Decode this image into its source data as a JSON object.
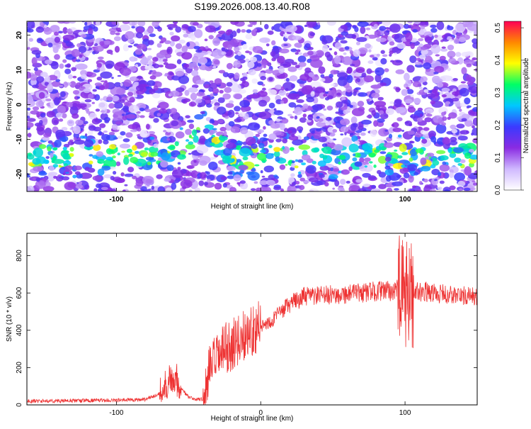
{
  "title": "S199.2026.008.13.40.R08",
  "charts": [
    {
      "type": "heatmap",
      "xlabel": "Height of straight line (km)",
      "ylabel": "Frequency (Hz)",
      "xlim": [
        -162,
        150
      ],
      "ylim": [
        -25,
        24
      ],
      "x_ticks": [
        -100,
        0,
        100
      ],
      "y_ticks": [
        -20,
        -10,
        0,
        10,
        20
      ],
      "colorbar": {
        "label": "Normalized spectral amplitude",
        "range": [
          0.0,
          0.52
        ],
        "ticks": [
          "0.0",
          "0.1",
          "0.2",
          "0.3",
          "0.4",
          "0.5"
        ],
        "colors": [
          "#ffffff",
          "#cfb8ff",
          "#8a2be2",
          "#3a3aff",
          "#00c8ff",
          "#00ff66",
          "#ffff00",
          "#ff8800",
          "#ff0055"
        ]
      },
      "signal_band": {
        "frequency_center_hz": -15,
        "x_start_km": -160,
        "x_end_km": 150,
        "curve_start_x_km": -40,
        "curve_start_frequency_hz": -6
      }
    },
    {
      "type": "line",
      "xlabel": "Height of straight line (km)",
      "ylabel": "SNR (10 * v/v)",
      "xlim": [
        -162,
        150
      ],
      "ylim": [
        0,
        920
      ],
      "x_ticks": [
        -100,
        0,
        100
      ],
      "y_ticks": [
        0,
        200,
        400,
        600,
        800
      ],
      "line_color": "#ee3333",
      "envelope": {
        "x": [
          -162,
          -100,
          -80,
          -70,
          -65,
          -60,
          -55,
          -50,
          -45,
          -40,
          -35,
          -30,
          -25,
          -20,
          -15,
          -10,
          -5,
          0,
          5,
          10,
          20,
          30,
          50,
          70,
          80,
          90,
          95,
          100,
          105,
          110,
          120,
          130,
          150
        ],
        "y": [
          20,
          25,
          30,
          60,
          120,
          160,
          90,
          40,
          30,
          30,
          200,
          250,
          300,
          320,
          350,
          380,
          410,
          420,
          440,
          470,
          540,
          580,
          590,
          600,
          610,
          610,
          620,
          580,
          600,
          610,
          600,
          590,
          580
        ]
      }
    }
  ]
}
